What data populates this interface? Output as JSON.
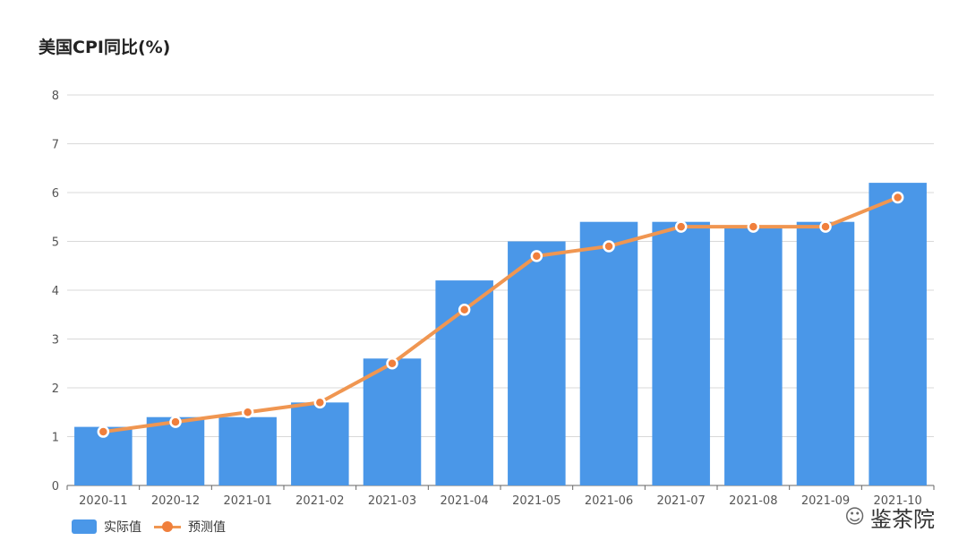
{
  "title": "美国CPI同比(%)",
  "colors": {
    "bar": "#4a97e8",
    "line": "#f09651",
    "dot": "#f07f3c",
    "grid": "#d9d9d9",
    "axis": "#666666"
  },
  "legend": {
    "actual": "实际值",
    "forecast": "预测值"
  },
  "brand": {
    "icon": "wechat-icon",
    "text": "鉴茶院"
  },
  "chart_data": {
    "type": "bar",
    "title": "美国CPI同比(%)",
    "categories": [
      "2020-11",
      "2020-12",
      "2021-01",
      "2021-02",
      "2021-03",
      "2021-04",
      "2021-05",
      "2021-06",
      "2021-07",
      "2021-08",
      "2021-09",
      "2021-10"
    ],
    "series": [
      {
        "name": "实际值",
        "type": "bar",
        "values": [
          1.2,
          1.4,
          1.4,
          1.7,
          2.6,
          4.2,
          5.0,
          5.4,
          5.4,
          5.3,
          5.4,
          6.2
        ]
      },
      {
        "name": "预测值",
        "type": "line",
        "values": [
          1.1,
          1.3,
          1.5,
          1.7,
          2.5,
          3.6,
          4.7,
          4.9,
          5.3,
          5.3,
          5.3,
          5.9
        ]
      }
    ],
    "yticks": [
      0,
      1,
      2,
      3,
      4,
      5,
      6,
      7,
      8
    ],
    "ylim": [
      0,
      8
    ],
    "grid": true,
    "legend_position": "bottom-left"
  }
}
